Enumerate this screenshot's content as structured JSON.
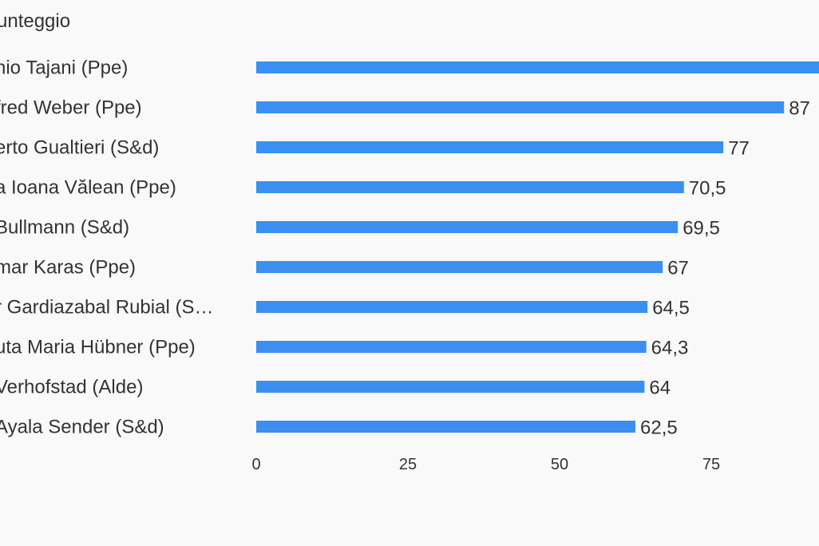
{
  "chart_data": {
    "type": "bar",
    "orientation": "horizontal",
    "title": "unteggio",
    "categories": [
      "nio Tajani (Ppe)",
      "fred Weber (Ppe)",
      "erto Gualtieri (S&d)",
      "a Ioana Vălean (Ppe)",
      "Bullmann (S&d)",
      "mar Karas (Ppe)",
      "r Gardiazabal Rubial (S…",
      "uta Maria Hübner (Ppe)",
      "Verhofstad (Alde)",
      "Ayala Sender (S&d)"
    ],
    "values": [
      93,
      87,
      77,
      70.5,
      69.5,
      67,
      64.5,
      64.3,
      64,
      62.5
    ],
    "value_labels": [
      "",
      "87",
      "77",
      "70,5",
      "69,5",
      "67",
      "64,5",
      "64,3",
      "64",
      "62,5"
    ],
    "xticks": [
      0,
      25,
      50,
      75
    ],
    "xtick_labels": [
      "0",
      "25",
      "50",
      "75"
    ],
    "xlim": [
      0,
      100
    ],
    "grid": false,
    "bar_color": "#3b8ff0"
  }
}
